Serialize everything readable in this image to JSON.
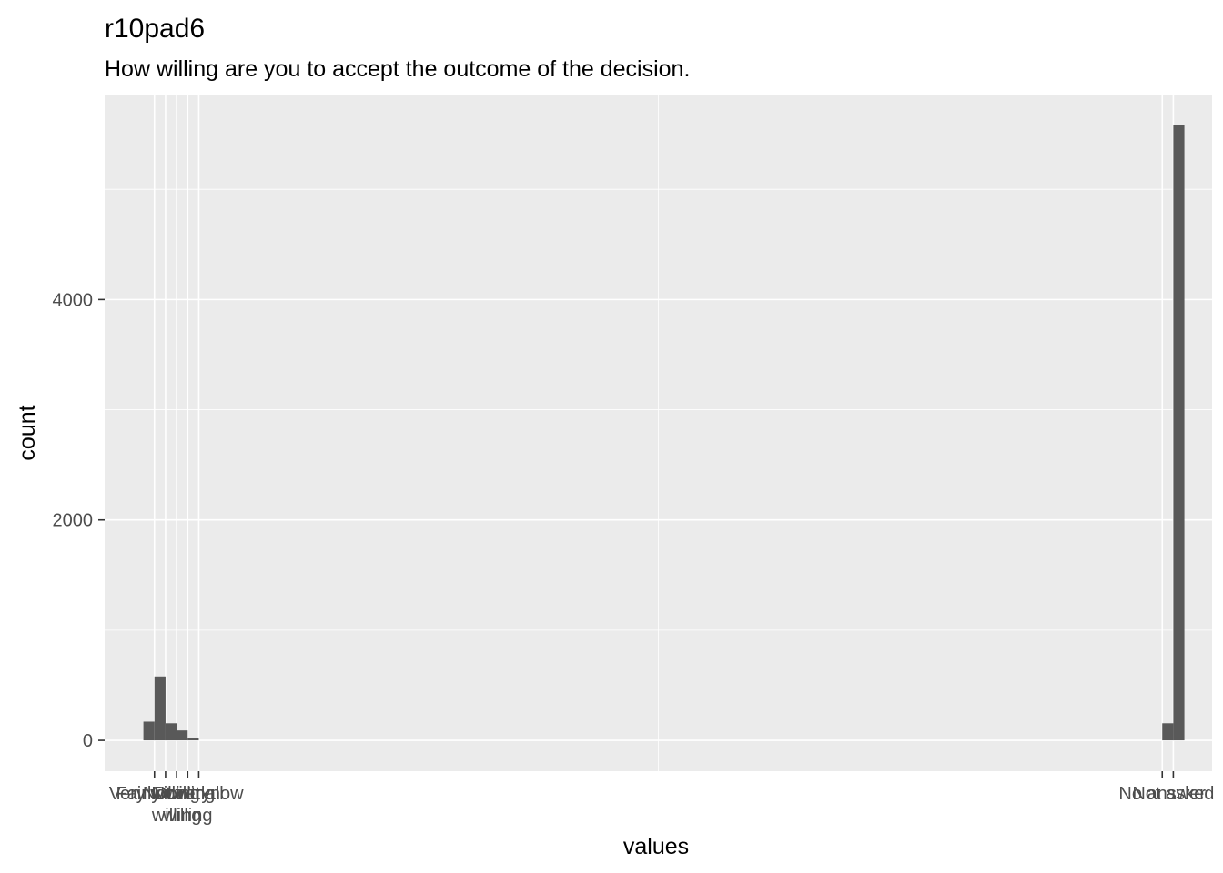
{
  "chart_data": {
    "type": "bar",
    "title": "r10pad6",
    "subtitle": "How willing are you to accept the outcome of the decision.",
    "xlabel": "values",
    "ylabel": "count",
    "ylim": [
      -280,
      5860
    ],
    "xlim": [
      -3.5,
      96.5
    ],
    "y_ticks": [
      0,
      2000,
      4000
    ],
    "y_minor_ticks": [
      1000,
      3000,
      5000
    ],
    "x_ticks": [
      {
        "pos": 1,
        "label": "Very willing"
      },
      {
        "pos": 2,
        "label": "Fairly willing"
      },
      {
        "pos": 3,
        "label": "Not very willing"
      },
      {
        "pos": 4,
        "label": "Not at all willing"
      },
      {
        "pos": 5,
        "label": "Don't know"
      },
      {
        "pos": 92,
        "label": "No answer"
      },
      {
        "pos": 93,
        "label": "Not asked"
      }
    ],
    "bars": [
      {
        "x": 0,
        "value": 170
      },
      {
        "x": 1,
        "value": 580
      },
      {
        "x": 2,
        "value": 155
      },
      {
        "x": 3,
        "value": 90
      },
      {
        "x": 4,
        "value": 25
      },
      {
        "x": 92,
        "value": 155
      },
      {
        "x": 93,
        "value": 5580
      }
    ],
    "bar_color": "#595959",
    "panel_background": "#ebebeb",
    "grid": true
  }
}
